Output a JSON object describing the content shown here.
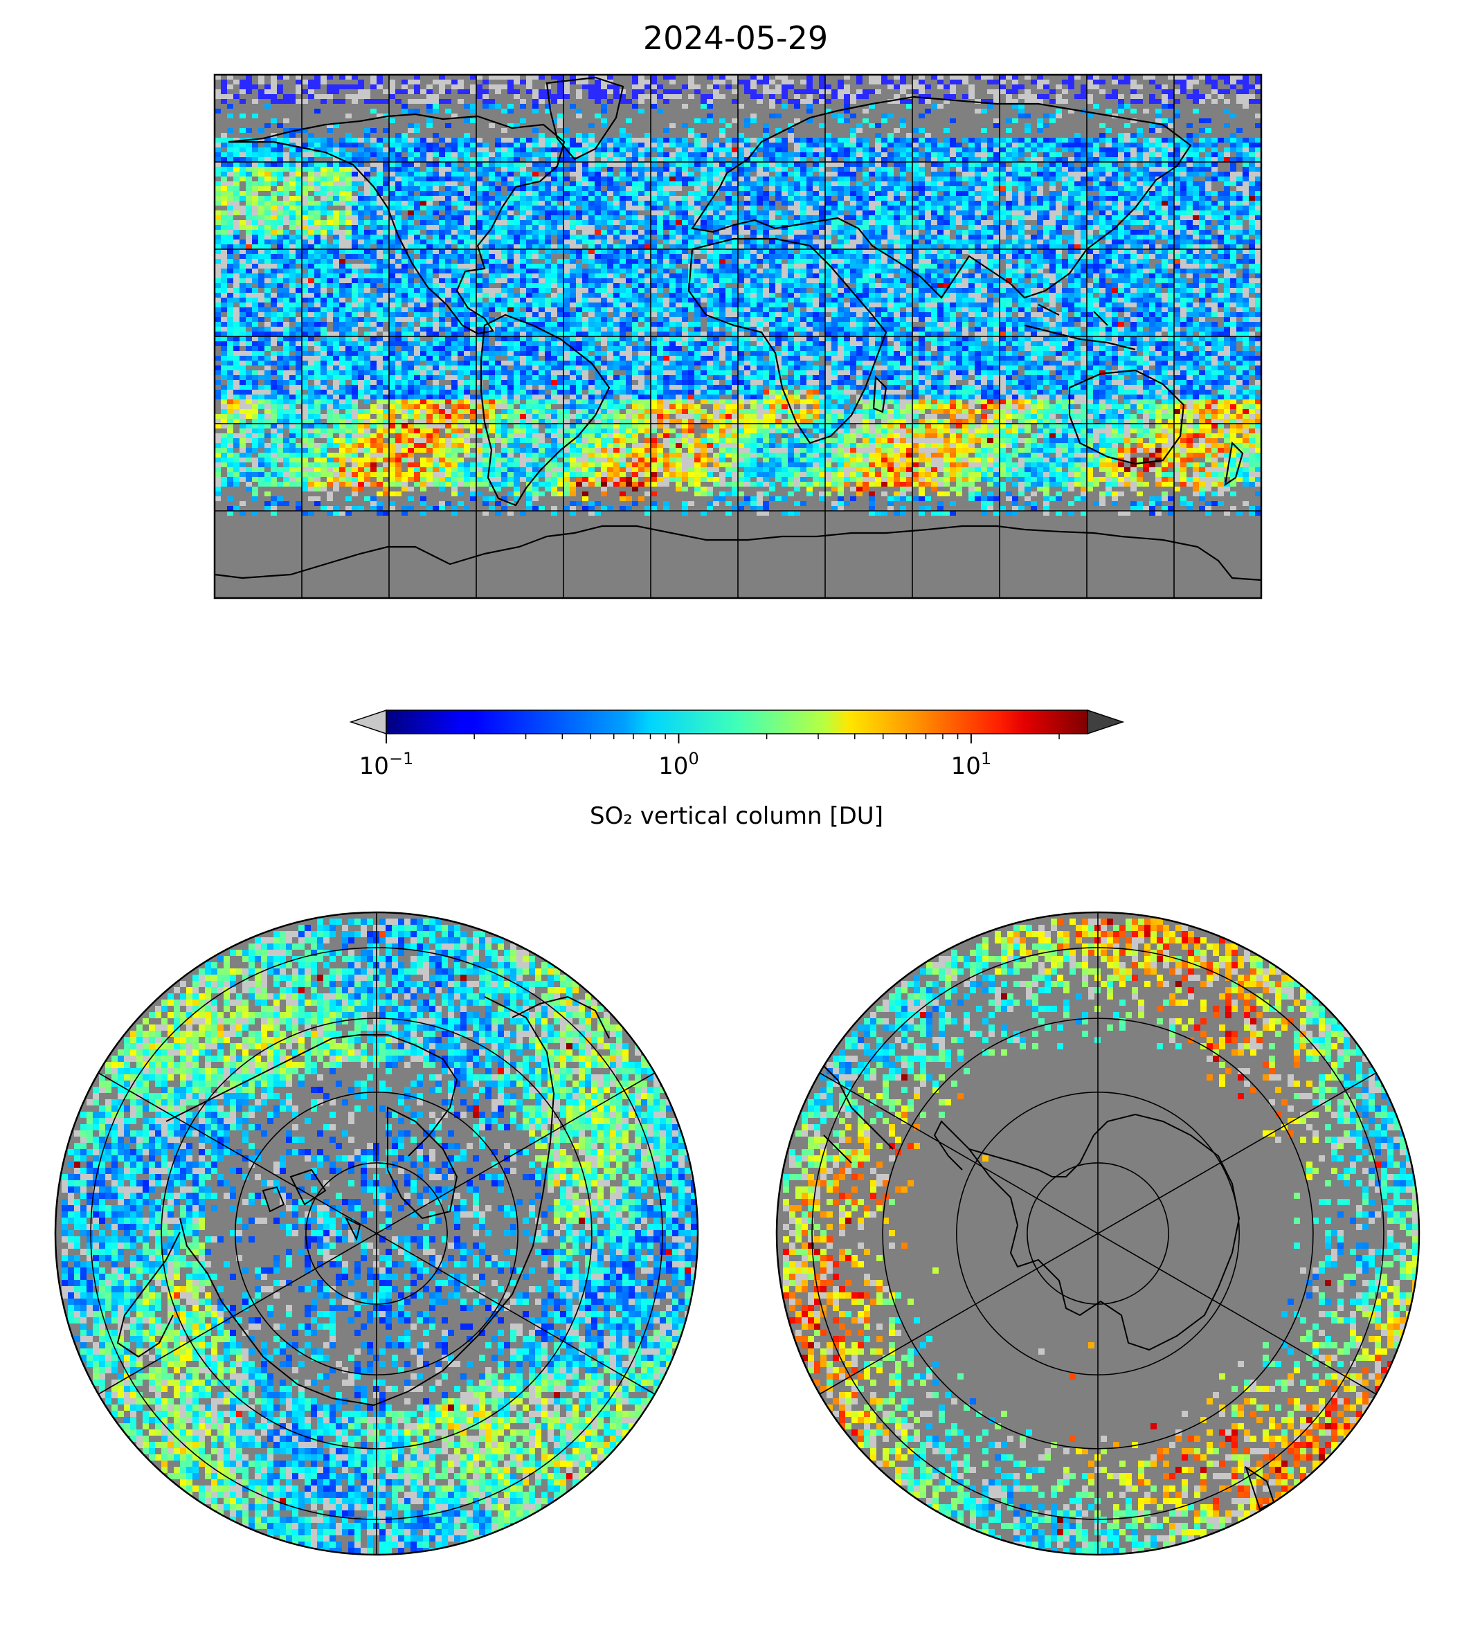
{
  "title": "2024-05-29",
  "colorbar": {
    "label": "SO₂ vertical column [DU]",
    "scale": "log",
    "min": 0.1,
    "max": 25,
    "colormap": "jet",
    "extend_low_color": "#c8c8c8",
    "extend_high_color": "#404040",
    "ticks": [
      {
        "value": 0.1,
        "base": "10",
        "exp": "−1"
      },
      {
        "value": 1,
        "base": "10",
        "exp": "0"
      },
      {
        "value": 10,
        "base": "10",
        "exp": "1"
      }
    ]
  },
  "maps": {
    "global": {
      "projection": "plate-carree",
      "background": "#808080"
    },
    "north_pole": {
      "projection": "north-polar-stereographic",
      "background": "#808080"
    },
    "south_pole": {
      "projection": "south-polar-stereographic",
      "background": "#808080"
    }
  },
  "colors": {
    "nodata_gray": "#808080",
    "low_gray": "#c8c8c8",
    "coastline": "#000000",
    "grid": "#000000"
  }
}
